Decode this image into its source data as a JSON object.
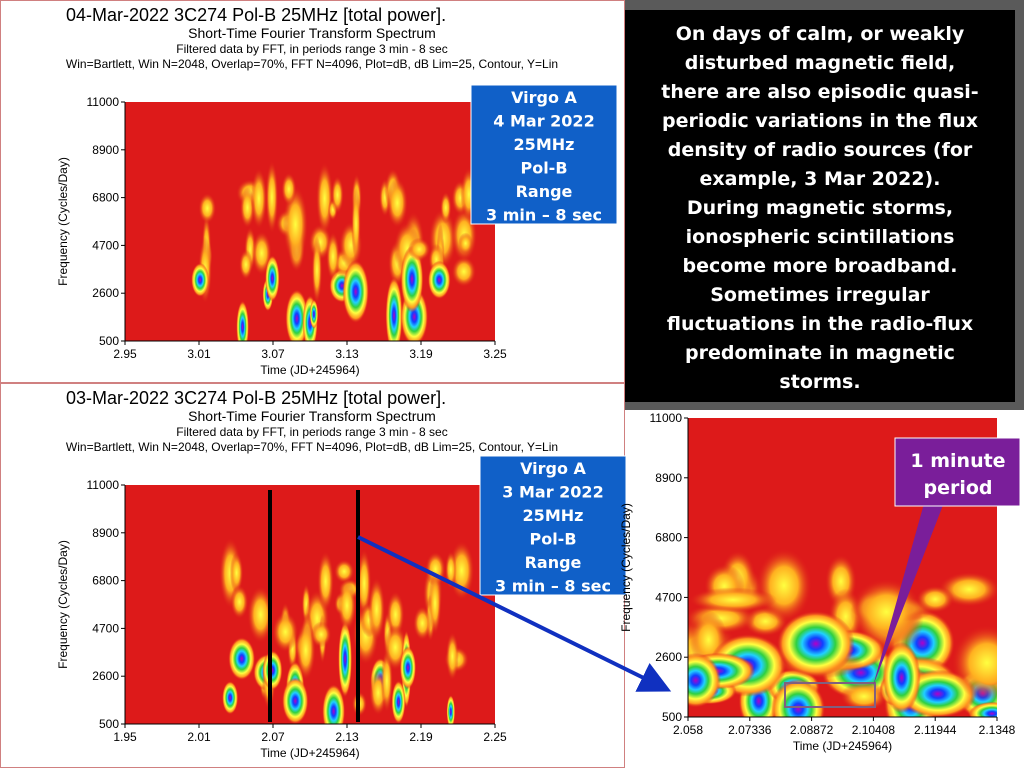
{
  "panels": [
    {
      "title": "04-Mar-2022 3C274 Pol-B 25MHz [total power].",
      "subtitle": "Short-Time Fourier Transform Spectrum",
      "filter": "Filtered data by FFT, in periods range 3 min - 8 sec",
      "params": "Win=Bartlett, Win N=2048, Overlap=70%, FFT N=4096, Plot=dB, dB Lim=25, Contour, Y=Lin",
      "ylabel": "Frequency (Cycles/Day)",
      "xlabel": "Time (JD+245964)",
      "yticks": [
        500,
        2600,
        4700,
        6800,
        8900,
        11000
      ],
      "xticks": [
        2.95,
        3.01,
        3.07,
        3.13,
        3.19,
        3.25
      ],
      "note": [
        "Virgo A",
        "4 Mar 2022",
        "25MHz",
        "Pol-B",
        "Range",
        "3 min – 8 sec"
      ]
    },
    {
      "title": "03-Mar-2022 3C274 Pol-B 25MHz [total power].",
      "subtitle": "Short-Time Fourier Transform Spectrum",
      "filter": "Filtered data by FFT, in periods range 3 min - 8 sec",
      "params": "Win=Bartlett, Win N=2048, Overlap=70%, FFT N=4096, Plot=dB, dB Lim=25, Contour, Y=Lin",
      "ylabel": "Frequency (Cycles/Day)",
      "xlabel": "Time (JD+245964)",
      "yticks": [
        500,
        2600,
        4700,
        6800,
        8900,
        11000
      ],
      "xticks": [
        1.95,
        2.01,
        2.07,
        2.13,
        2.19,
        2.25
      ],
      "note": [
        "Virgo A",
        "3 Mar 2022",
        "25MHz",
        "Pol-B",
        "Range",
        "3 min – 8 sec"
      ]
    }
  ],
  "description": [
    "On days of calm, or weakly",
    "disturbed magnetic field,",
    "there are also episodic quasi-",
    "periodic variations in the flux",
    "density of radio sources (for",
    "example, 3 Mar 2022).",
    "During magnetic storms,",
    "ionospheric scintillations",
    "become more broadband.",
    "Sometimes irregular",
    "fluctuations in the radio-flux",
    "predominate in magnetic",
    "storms."
  ],
  "zoom": {
    "ylabel": "Frequency (Cycles/Day)",
    "xlabel": "Time (JD+245964)",
    "yticks": [
      500,
      2600,
      4700,
      6800,
      8900,
      11000
    ],
    "xticks": [
      2.058,
      2.07336,
      2.08872,
      2.10408,
      2.11944,
      2.1348
    ]
  },
  "callout": [
    "1 minute",
    "period"
  ]
}
